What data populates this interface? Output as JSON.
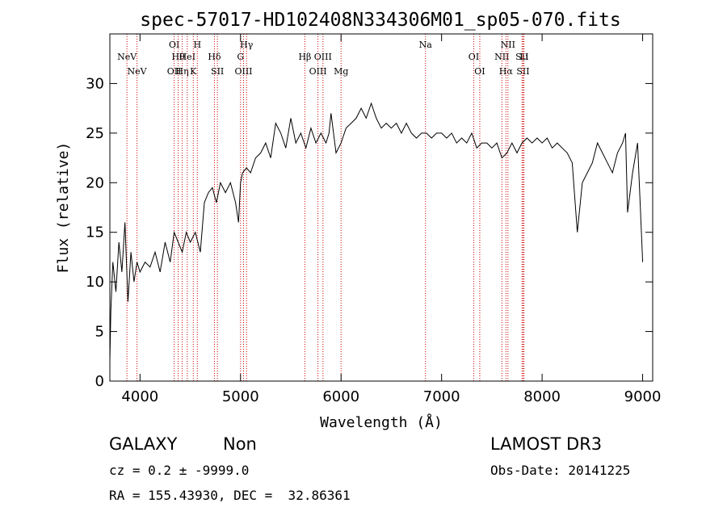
{
  "chart_data": {
    "type": "line",
    "title": "spec-57017-HD102408N334306M01_sp05-070.fits",
    "xlabel": "Wavelength (Å)",
    "ylabel": "Flux (relative)",
    "xlim": [
      3700,
      9100
    ],
    "ylim": [
      0,
      35
    ],
    "xticks": [
      4000,
      5000,
      6000,
      7000,
      8000,
      9000
    ],
    "yticks": [
      0,
      5,
      10,
      15,
      20,
      25,
      30
    ],
    "series": [
      {
        "name": "spectrum",
        "x": [
          3700,
          3710,
          3730,
          3760,
          3790,
          3820,
          3850,
          3880,
          3910,
          3940,
          3970,
          4000,
          4050,
          4100,
          4150,
          4200,
          4250,
          4300,
          4340,
          4380,
          4420,
          4460,
          4500,
          4550,
          4600,
          4640,
          4680,
          4720,
          4760,
          4800,
          4850,
          4900,
          4950,
          4980,
          5000,
          5020,
          5060,
          5100,
          5150,
          5200,
          5250,
          5300,
          5350,
          5400,
          5450,
          5500,
          5550,
          5600,
          5650,
          5700,
          5750,
          5800,
          5850,
          5880,
          5900,
          5950,
          6000,
          6050,
          6100,
          6150,
          6200,
          6250,
          6300,
          6350,
          6400,
          6450,
          6500,
          6550,
          6600,
          6650,
          6700,
          6750,
          6800,
          6850,
          6900,
          6950,
          7000,
          7050,
          7100,
          7150,
          7200,
          7250,
          7300,
          7350,
          7400,
          7450,
          7500,
          7550,
          7600,
          7650,
          7700,
          7750,
          7800,
          7850,
          7900,
          7950,
          8000,
          8050,
          8100,
          8150,
          8200,
          8250,
          8300,
          8350,
          8400,
          8450,
          8500,
          8550,
          8600,
          8650,
          8700,
          8750,
          8800,
          8830,
          8850,
          8900,
          8950,
          9000
        ],
        "y": [
          2,
          7,
          12,
          9,
          14,
          11,
          16,
          8,
          13,
          10,
          12,
          11,
          12,
          11.5,
          13,
          11,
          14,
          12,
          15,
          14,
          13,
          15,
          14,
          15,
          13,
          18,
          19,
          19.5,
          18,
          20,
          19,
          20,
          18,
          16,
          20,
          21,
          21.5,
          21,
          22.5,
          23,
          24,
          22.5,
          26,
          25,
          23.5,
          26.5,
          24,
          25,
          23.5,
          25.5,
          24,
          25,
          24,
          25,
          27,
          23,
          24,
          25.5,
          26,
          26.5,
          27.5,
          26.5,
          28,
          26.5,
          25.5,
          26,
          25.5,
          26,
          25,
          26,
          25,
          24.5,
          25,
          25,
          24.5,
          25,
          25,
          24.5,
          25,
          24,
          24.5,
          24,
          25,
          23.5,
          24,
          24,
          23.5,
          24,
          22.5,
          23,
          24,
          23,
          24,
          24.5,
          24,
          24.5,
          24,
          24.5,
          23.5,
          24,
          23.5,
          23,
          22,
          15,
          20,
          21,
          22,
          24,
          23,
          22,
          21,
          23,
          24,
          25,
          17,
          21,
          24,
          12
        ]
      }
    ],
    "line_markers": [
      {
        "x": 3870,
        "labels": [
          "NeV"
        ]
      },
      {
        "x": 3970,
        "labels": [
          "NeV"
        ]
      },
      {
        "x": 4340,
        "labels": [
          "OI",
          "OII"
        ]
      },
      {
        "x": 4380,
        "labels": [
          "Hθ"
        ]
      },
      {
        "x": 4420,
        "labels": [
          "Hη"
        ]
      },
      {
        "x": 4470,
        "labels": [
          "HeI"
        ]
      },
      {
        "x": 4530,
        "labels": [
          "K"
        ]
      },
      {
        "x": 4570,
        "labels": [
          "H"
        ]
      },
      {
        "x": 4740,
        "labels": [
          "Hδ"
        ]
      },
      {
        "x": 4770,
        "labels": [
          "SII"
        ]
      },
      {
        "x": 5000,
        "labels": [
          "G"
        ]
      },
      {
        "x": 5030,
        "labels": [
          "OIII"
        ]
      },
      {
        "x": 5060,
        "labels": [
          "Hγ"
        ]
      },
      {
        "x": 5640,
        "labels": [
          "Hβ"
        ]
      },
      {
        "x": 5770,
        "labels": [
          "OIII"
        ]
      },
      {
        "x": 5820,
        "labels": [
          "OIII"
        ]
      },
      {
        "x": 6000,
        "labels": [
          "Mg"
        ]
      },
      {
        "x": 6840,
        "labels": [
          "Na"
        ]
      },
      {
        "x": 7320,
        "labels": [
          "OI"
        ]
      },
      {
        "x": 7380,
        "labels": [
          "OI"
        ]
      },
      {
        "x": 7600,
        "labels": [
          "NII"
        ]
      },
      {
        "x": 7640,
        "labels": [
          "Hα"
        ]
      },
      {
        "x": 7660,
        "labels": [
          "NII"
        ]
      },
      {
        "x": 7800,
        "labels": [
          "SII"
        ]
      },
      {
        "x": 7810,
        "labels": [
          "SII"
        ]
      },
      {
        "x": 7820,
        "labels": [
          "Li"
        ]
      }
    ]
  },
  "info": {
    "class": "GALAXY",
    "subclass": "Non",
    "survey": "LAMOST DR3",
    "cz": "cz = 0.2 ± -9999.0",
    "obs_date": "Obs-Date: 20141225",
    "coords": "RA = 155.43930, DEC =  32.86361"
  },
  "colors": {
    "marker": "#cc0000",
    "line": "#000000"
  }
}
